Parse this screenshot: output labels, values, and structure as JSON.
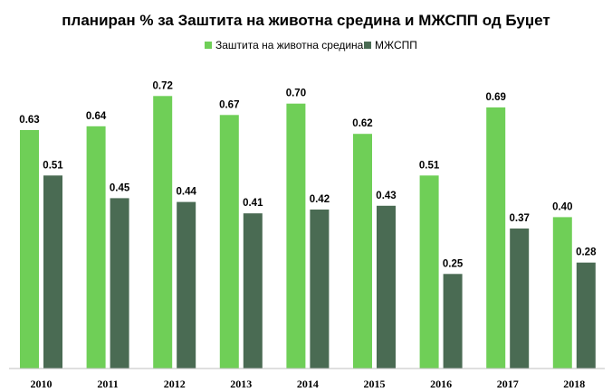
{
  "chart_data": {
    "type": "bar",
    "title": "планиран % за Заштита на животна средина и  МЖСПП од Буџет",
    "xlabel": "",
    "ylabel": "",
    "ylim": [
      0,
      0.8
    ],
    "grid": false,
    "legend": "top",
    "categories": [
      "2010",
      "2011",
      "2012",
      "2013",
      "2014",
      "2015",
      "2016",
      "2017",
      "2018"
    ],
    "series": [
      {
        "name": "Заштита на животна средина",
        "color": "#6fcf57",
        "values": [
          0.63,
          0.64,
          0.72,
          0.67,
          0.7,
          0.62,
          0.51,
          0.69,
          0.4
        ],
        "labels": [
          "0.63",
          "0.64",
          "0.72",
          "0.67",
          "0.70",
          "0.62",
          "0.51",
          "0.69",
          "0.40"
        ]
      },
      {
        "name": "МЖСПП",
        "color": "#4a6b53",
        "values": [
          0.51,
          0.45,
          0.44,
          0.41,
          0.42,
          0.43,
          0.25,
          0.37,
          0.28
        ],
        "labels": [
          "0.51",
          "0.45",
          "0.44",
          "0.41",
          "0.42",
          "0.43",
          "0.25",
          "0.37",
          "0.28"
        ]
      }
    ]
  }
}
